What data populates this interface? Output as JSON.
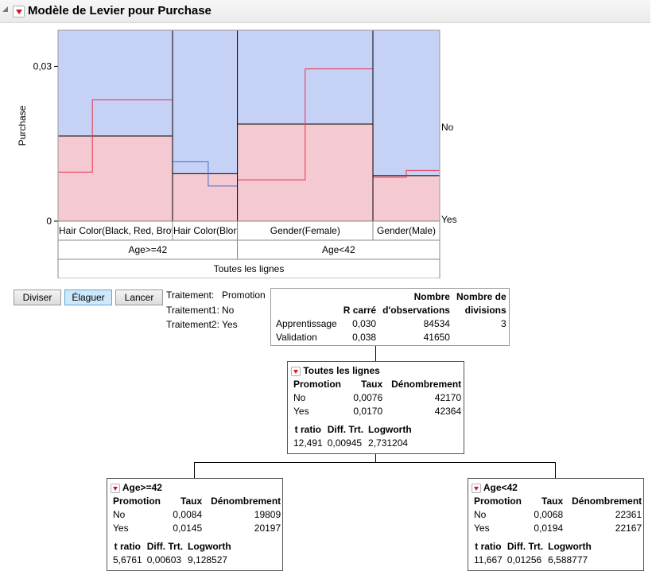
{
  "report": {
    "title": "Modèle de Levier pour Purchase"
  },
  "chart_data": {
    "type": "bar",
    "title": "",
    "ylabel": "Purchase",
    "ylim": [
      0,
      0.037
    ],
    "yticks": [
      {
        "value": 0,
        "label": "0"
      },
      {
        "value": 0.03,
        "label": "0,03"
      }
    ],
    "right_labels": [
      {
        "label": "No"
      },
      {
        "label": "Yes"
      }
    ],
    "segments": [
      {
        "label": "Hair Color(Black, Red, Brow",
        "share": 0.3,
        "value": 0.0165,
        "red_line": [
          0.0095,
          0.0235
        ],
        "red_split": 0.3
      },
      {
        "label": "Hair Color(Blon",
        "share": 0.17,
        "value": 0.0092,
        "blue_line": [
          0.0115,
          0.0068
        ],
        "blue_split": 0.55
      },
      {
        "label": "Gender(Female)",
        "share": 0.355,
        "value": 0.0188,
        "red_line": [
          0.008,
          0.0295
        ],
        "red_split": 0.5
      },
      {
        "label": "Gender(Male)",
        "share": 0.175,
        "value": 0.0088,
        "red_line": [
          0.0085,
          0.0098
        ],
        "red_split": 0.5
      }
    ],
    "groups": [
      {
        "label": "Age>=42",
        "segments": 2
      },
      {
        "label": "Age<42",
        "segments": 2
      }
    ],
    "root_label": "Toutes les lignes",
    "colors": {
      "no": "#c6d1f6",
      "yes": "#f4c9d1",
      "red": "#e8324a",
      "blue": "#3e6fd6"
    }
  },
  "buttons": {
    "split": "Diviser",
    "prune": "Élaguer",
    "go": "Lancer"
  },
  "treatment": {
    "l1": "Traitement:",
    "v1": "Promotion",
    "l2": "Traitement1:",
    "v2": "No",
    "l3": "Traitement2:",
    "v3": "Yes"
  },
  "summary": {
    "headers": {
      "rsq": "R carré",
      "nobs_1": "Nombre",
      "nobs_2": "d'observations",
      "ndiv_1": "Nombre de",
      "ndiv_2": "divisions"
    },
    "rows": [
      {
        "name": "Apprentissage",
        "rsq": "0,030",
        "nobs": "84534",
        "ndiv": "3"
      },
      {
        "name": "Validation",
        "rsq": "0,038",
        "nobs": "41650",
        "ndiv": ""
      }
    ]
  },
  "nodes": {
    "root": {
      "title": "Toutes les lignes",
      "cols": {
        "promo": "Promotion",
        "rate": "Taux",
        "count": "Dénombrement"
      },
      "rows": [
        {
          "promo": "No",
          "rate": "0,0076",
          "count": "42170"
        },
        {
          "promo": "Yes",
          "rate": "0,0170",
          "count": "42364"
        }
      ],
      "stats_h": {
        "t": "t ratio",
        "d": "Diff. Trt.",
        "lw": "Logworth"
      },
      "stats": {
        "t": "12,491",
        "d": "0,00945",
        "lw": "2,731204"
      }
    },
    "left": {
      "title": "Age>=42",
      "cols": {
        "promo": "Promotion",
        "rate": "Taux",
        "count": "Dénombrement"
      },
      "rows": [
        {
          "promo": "No",
          "rate": "0,0084",
          "count": "19809"
        },
        {
          "promo": "Yes",
          "rate": "0,0145",
          "count": "20197"
        }
      ],
      "stats_h": {
        "t": "t ratio",
        "d": "Diff. Trt.",
        "lw": "Logworth"
      },
      "stats": {
        "t": "5,6761",
        "d": "0,00603",
        "lw": "9,128527"
      }
    },
    "right": {
      "title": "Age<42",
      "cols": {
        "promo": "Promotion",
        "rate": "Taux",
        "count": "Dénombrement"
      },
      "rows": [
        {
          "promo": "No",
          "rate": "0,0068",
          "count": "22361"
        },
        {
          "promo": "Yes",
          "rate": "0,0194",
          "count": "22167"
        }
      ],
      "stats_h": {
        "t": "t ratio",
        "d": "Diff. Trt.",
        "lw": "Logworth"
      },
      "stats": {
        "t": "11,667",
        "d": "0,01256",
        "lw": "6,588777"
      }
    }
  }
}
